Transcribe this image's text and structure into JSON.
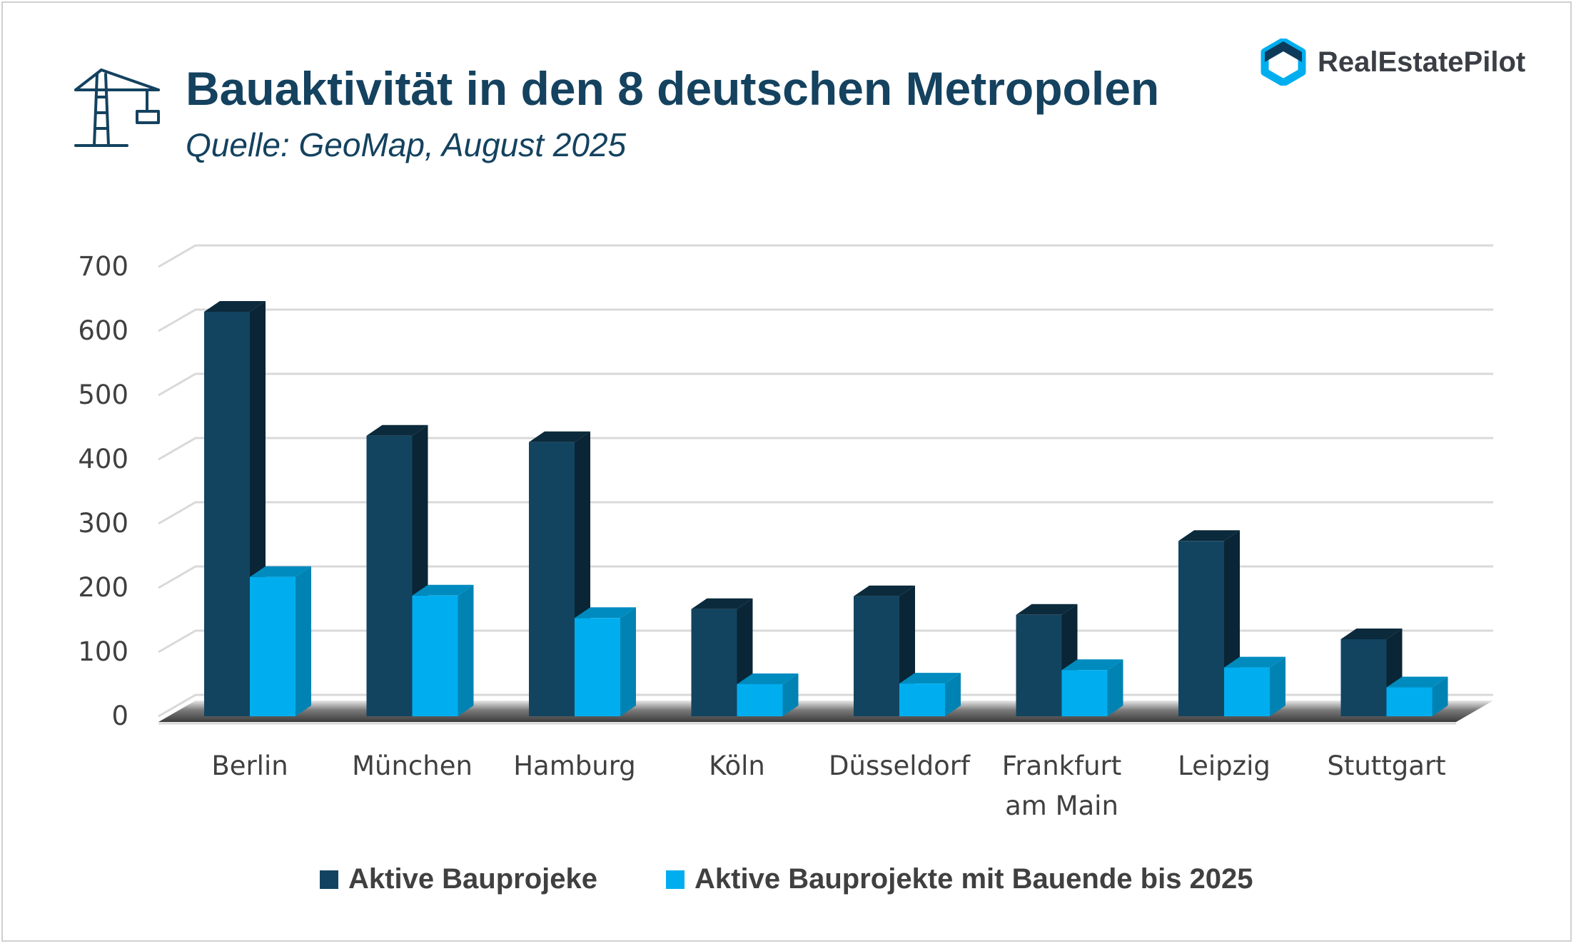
{
  "header": {
    "title": "Bauaktivität in den 8 deutschen Metropolen",
    "subtitle": "Quelle: GeoMap, August 2025",
    "icon": "construction-crane-icon"
  },
  "brand": {
    "name": "RealEstatePilot",
    "icon": "hexagon-logo-icon",
    "accent_color": "#00aeef"
  },
  "colors": {
    "series_1": "#124460",
    "series_2": "#00aeef",
    "text": "#404040",
    "title": "#14425f"
  },
  "chart_data": {
    "type": "bar",
    "three_d": true,
    "categories": [
      "Berlin",
      "München",
      "Hamburg",
      "Köln",
      "Düsseldorf",
      "Frankfurt am Main",
      "Leipzig",
      "Stuttgart"
    ],
    "category_lines": [
      [
        "Berlin"
      ],
      [
        "München"
      ],
      [
        "Hamburg"
      ],
      [
        "Köln"
      ],
      [
        "Düsseldorf"
      ],
      [
        "Frankfurt",
        "am Main"
      ],
      [
        "Leipzig"
      ],
      [
        "Stuttgart"
      ]
    ],
    "series": [
      {
        "name": "Aktive Bauprojeke",
        "values": [
          630,
          437,
          427,
          167,
          187,
          158,
          273,
          120
        ]
      },
      {
        "name": "Aktive Bauprojekte mit Bauende bis 2025",
        "values": [
          217,
          188,
          153,
          50,
          51,
          72,
          76,
          45
        ]
      }
    ],
    "yticks": [
      0,
      100,
      200,
      300,
      400,
      500,
      600,
      700
    ],
    "ylim": [
      0,
      700
    ],
    "grid": true,
    "legend_position": "bottom"
  }
}
